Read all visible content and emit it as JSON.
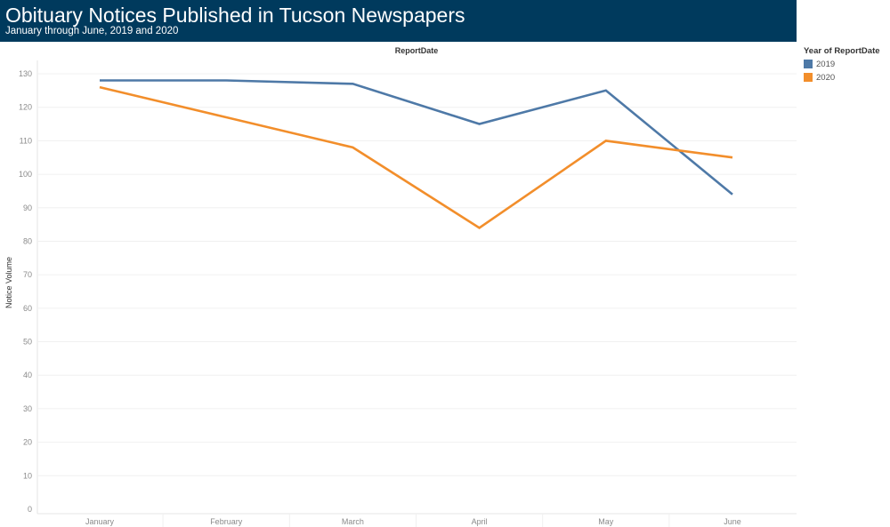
{
  "header": {
    "title": "Obituary Notices Published in Tucson Newspapers",
    "subtitle": "January through June, 2019 and 2020"
  },
  "chart_data": {
    "type": "line",
    "column_header": "ReportDate",
    "ylabel": "Notice Volume",
    "xlabel": "",
    "categories": [
      "January",
      "February",
      "March",
      "April",
      "May",
      "June"
    ],
    "ylim": [
      0,
      130
    ],
    "yticks": [
      0,
      10,
      20,
      30,
      40,
      50,
      60,
      70,
      80,
      90,
      100,
      110,
      120,
      130
    ],
    "grid": true,
    "legend_position": "right",
    "legend_title": "Year of ReportDate",
    "series": [
      {
        "name": "2019",
        "color": "#4e79a7",
        "values": [
          128,
          128,
          127,
          115,
          125,
          94
        ]
      },
      {
        "name": "2020",
        "color": "#f28e2b",
        "values": [
          126,
          117,
          108,
          84,
          110,
          105
        ]
      }
    ]
  }
}
